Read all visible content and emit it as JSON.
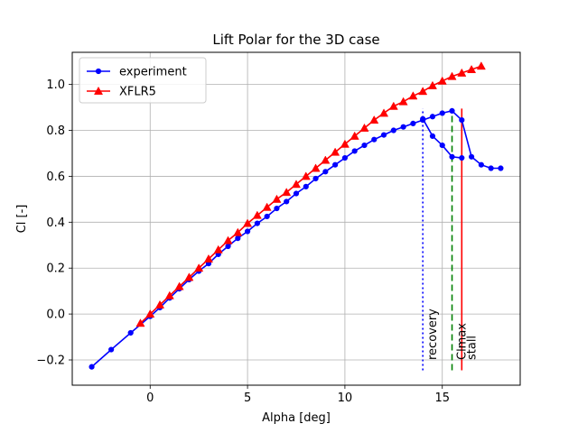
{
  "chart_data": {
    "type": "line",
    "title": "Lift Polar for the 3D case",
    "xlabel": "Alpha [deg]",
    "ylabel": "Cl [-]",
    "xlim": [
      -4,
      19
    ],
    "ylim": [
      -0.31,
      1.14
    ],
    "xticks": [
      0,
      5,
      10,
      15
    ],
    "yticks": [
      -0.2,
      0.0,
      0.2,
      0.4,
      0.6,
      0.8,
      1.0
    ],
    "xtick_labels": [
      "0",
      "5",
      "10",
      "15"
    ],
    "ytick_labels": [
      "−0.2",
      "0.0",
      "0.2",
      "0.4",
      "0.6",
      "0.8",
      "1.0"
    ],
    "grid": true,
    "legend_position": "top-left",
    "series": [
      {
        "name": "experiment",
        "color": "#0000ff",
        "marker": "circle",
        "x": [
          -3,
          -2,
          -1,
          0,
          0.5,
          1,
          1.5,
          2,
          2.5,
          3,
          3.5,
          4,
          4.5,
          5,
          5.5,
          6,
          6.5,
          7,
          7.5,
          8,
          8.5,
          9,
          9.5,
          10,
          10.5,
          11,
          11.5,
          12,
          12.5,
          13,
          13.5,
          14,
          14.5,
          15,
          15.5,
          16,
          16.5,
          17,
          17.5,
          18
        ],
        "y": [
          -0.23,
          -0.155,
          -0.082,
          -0.01,
          0.028,
          0.07,
          0.11,
          0.15,
          0.187,
          0.22,
          0.26,
          0.295,
          0.33,
          0.36,
          0.395,
          0.425,
          0.46,
          0.49,
          0.525,
          0.555,
          0.59,
          0.62,
          0.65,
          0.68,
          0.71,
          0.735,
          0.76,
          0.78,
          0.8,
          0.815,
          0.83,
          0.845,
          0.86,
          0.875,
          0.885,
          0.845,
          0.685,
          0.65,
          0.635,
          0.635
        ],
        "x_branch": [
          14,
          14.5,
          15,
          15.5,
          16
        ],
        "y_branch": [
          0.85,
          0.775,
          0.735,
          0.685,
          0.68
        ]
      },
      {
        "name": "XFLR5",
        "color": "#ff0000",
        "marker": "triangle",
        "x": [
          -0.5,
          0,
          0.5,
          1,
          1.5,
          2,
          2.5,
          3,
          3.5,
          4,
          4.5,
          5,
          5.5,
          6,
          6.5,
          7,
          7.5,
          8,
          8.5,
          9,
          9.5,
          10,
          10.5,
          11,
          11.5,
          12,
          12.5,
          13,
          13.5,
          14,
          14.5,
          15,
          15.5,
          16,
          16.5,
          17
        ],
        "y": [
          -0.04,
          0.0,
          0.04,
          0.08,
          0.12,
          0.16,
          0.2,
          0.24,
          0.28,
          0.32,
          0.355,
          0.395,
          0.43,
          0.465,
          0.5,
          0.53,
          0.565,
          0.6,
          0.635,
          0.67,
          0.705,
          0.74,
          0.775,
          0.81,
          0.845,
          0.875,
          0.905,
          0.925,
          0.95,
          0.97,
          0.995,
          1.015,
          1.035,
          1.05,
          1.065,
          1.08
        ]
      }
    ],
    "vertical_lines": [
      {
        "x": 14.0,
        "label": "recovery",
        "color": "#0000ff",
        "style": "dotted",
        "y_from": -0.245,
        "y_to": 0.895
      },
      {
        "x": 15.5,
        "label": "Clmax",
        "color": "#008000",
        "style": "dashed",
        "y_from": -0.245,
        "y_to": 0.895
      },
      {
        "x": 16.0,
        "label": "stall",
        "color": "#ff0000",
        "style": "solid",
        "y_from": -0.245,
        "y_to": 0.895
      }
    ]
  }
}
